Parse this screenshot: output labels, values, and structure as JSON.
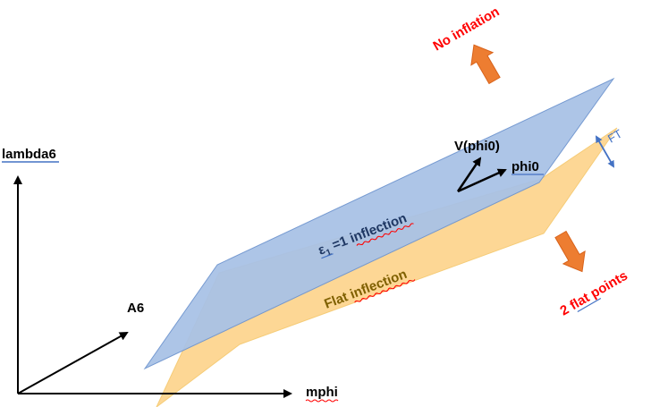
{
  "axes": {
    "vertical_label": "lambda6",
    "horizontal_label": "mphi",
    "diagonal_label": "A6"
  },
  "planes": {
    "upper_label_symbol": "ε",
    "upper_label_subscript": "1",
    "upper_label_rest": " =1 inflection",
    "lower_label": "Flat inflection"
  },
  "vectors": {
    "v_label": "V(phi0)",
    "phi_label": "phi0"
  },
  "gap_label": "FT",
  "annotations": {
    "top": "No inflation",
    "bottom": "2 flat points"
  },
  "colors": {
    "upper_plane_fill": "#a9c2e6",
    "upper_plane_stroke": "#6f95cf",
    "lower_plane_fill": "#fdd38a",
    "lower_plane_stroke": "#f5c76a",
    "upper_text": "#1f3864",
    "lower_text": "#7f6000",
    "accent_red": "#ff0000",
    "orange_arrow": "#ed7d31",
    "ft_blue": "#4472c4",
    "squiggle_red": "#ff0000",
    "underline_blue": "#4472c4"
  }
}
